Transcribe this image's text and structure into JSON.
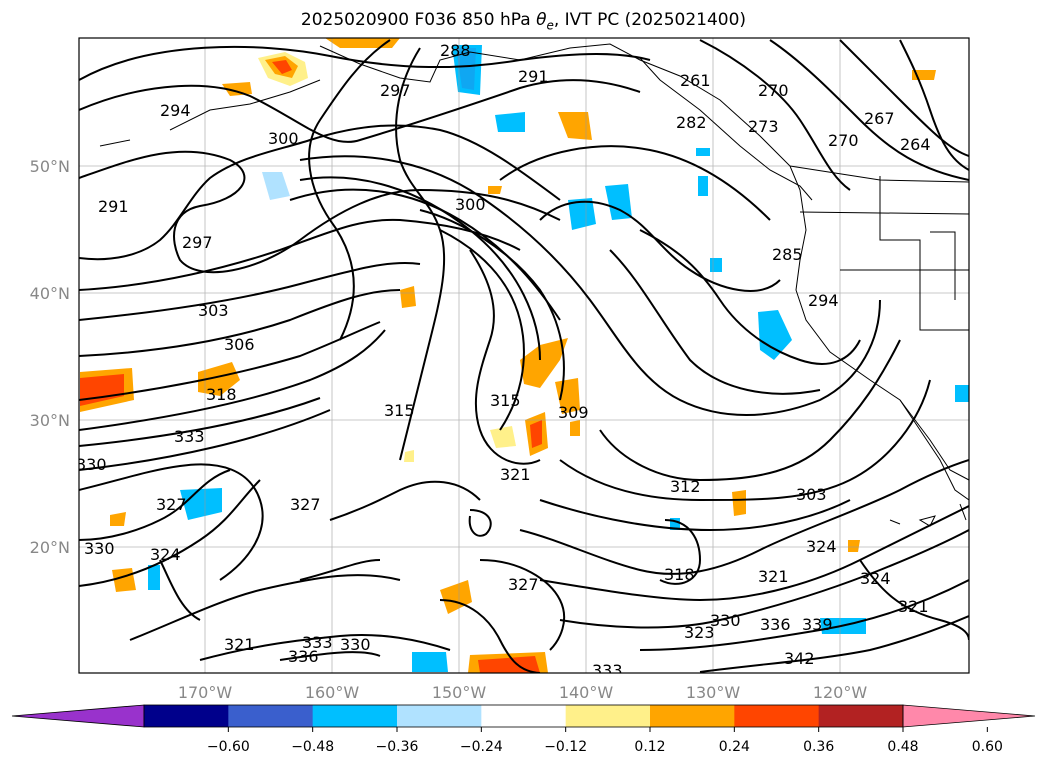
{
  "title_prefix": "2025020900 F036 850 hPa ",
  "title_symbol": "θ",
  "title_subscript": "e",
  "title_suffix": ", IVT PC (2025021400)",
  "lat_labels": [
    "50°N",
    "40°N",
    "30°N",
    "20°N"
  ],
  "lon_labels": [
    "170°W",
    "160°W",
    "150°W",
    "140°W",
    "130°W",
    "120°W"
  ],
  "colorbar": {
    "colors": [
      "#9932cc",
      "#00008b",
      "#3a5fcd",
      "#00bfff",
      "#b0e2ff",
      "#ffffff",
      "#fff08a",
      "#ffa500",
      "#ff4500",
      "#b22222",
      "#ff88aa"
    ],
    "tick_labels": [
      "−0.60",
      "−0.48",
      "−0.36",
      "−0.24",
      "−0.12",
      "0.12",
      "0.24",
      "0.36",
      "0.48",
      "0.60"
    ]
  },
  "contour_labels": [
    "288",
    "291",
    "297",
    "294",
    "300",
    "261",
    "270",
    "273",
    "267",
    "270",
    "264",
    "282",
    "291",
    "297",
    "300",
    "285",
    "294",
    "303",
    "306",
    "318",
    "315",
    "315",
    "309",
    "333",
    "330",
    "321",
    "312",
    "303",
    "327",
    "327",
    "324",
    "330",
    "324",
    "318",
    "321",
    "324",
    "321",
    "327",
    "321",
    "333",
    "330",
    "336",
    "323",
    "330",
    "336",
    "339",
    "342",
    "333"
  ]
}
